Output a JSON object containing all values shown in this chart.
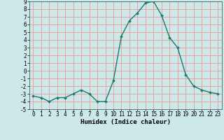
{
  "x": [
    0,
    1,
    2,
    3,
    4,
    5,
    6,
    7,
    8,
    9,
    10,
    11,
    12,
    13,
    14,
    15,
    16,
    17,
    18,
    19,
    20,
    21,
    22,
    23
  ],
  "y": [
    -3.3,
    -3.5,
    -4.0,
    -3.5,
    -3.5,
    -3.0,
    -2.5,
    -3.0,
    -4.0,
    -4.0,
    -1.3,
    4.5,
    6.5,
    7.5,
    8.8,
    9.0,
    7.2,
    4.3,
    3.0,
    -0.5,
    -2.0,
    -2.5,
    -2.8,
    -3.0
  ],
  "line_color": "#1a7a6e",
  "marker": "D",
  "marker_size": 2,
  "bg_color": "#cce8e8",
  "grid_color": "#e8a0a0",
  "xlabel": "Humidex (Indice chaleur)",
  "xlim": [
    -0.5,
    23.5
  ],
  "ylim": [
    -5,
    9
  ],
  "yticks": [
    -5,
    -4,
    -3,
    -2,
    -1,
    0,
    1,
    2,
    3,
    4,
    5,
    6,
    7,
    8,
    9
  ],
  "xticks": [
    0,
    1,
    2,
    3,
    4,
    5,
    6,
    7,
    8,
    9,
    10,
    11,
    12,
    13,
    14,
    15,
    16,
    17,
    18,
    19,
    20,
    21,
    22,
    23
  ],
  "tick_fontsize": 5.5,
  "xlabel_fontsize": 6.5,
  "line_width": 1.0
}
